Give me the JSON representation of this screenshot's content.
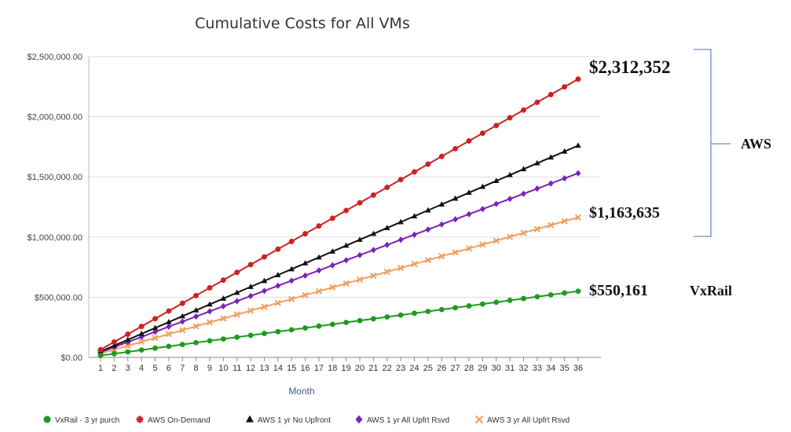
{
  "chart_data": {
    "type": "line",
    "title": "Cumulative Costs for All VMs",
    "xlabel": "Month",
    "ylabel": "",
    "ylim": [
      0,
      2500000
    ],
    "y_ticks": [
      "$0.00",
      "$500,000.00",
      "$1,000,000.00",
      "$1,500,000.00",
      "$2,000,000.00",
      "$2,500,000.00"
    ],
    "x_start": 1,
    "x_end": 36,
    "grid": "horizontal",
    "legend_position": "bottom",
    "series": [
      {
        "name": "VxRail - 3 yr purch",
        "start": 15282,
        "end": 550161,
        "color": "#1f9a1f",
        "marker": "circle"
      },
      {
        "name": "AWS On-Demand",
        "start": 64232,
        "end": 2312352,
        "color": "#cc2222",
        "marker": "cross"
      },
      {
        "name": "AWS 1 yr No Upfront",
        "start": 48889,
        "end": 1760000,
        "color": "#111111",
        "marker": "triangle"
      },
      {
        "name": "AWS 1 yr All Upfrt Rsvd",
        "start": 42500,
        "end": 1530000,
        "color": "#7a22b4",
        "marker": "diamond"
      },
      {
        "name": "AWS 3 yr All Upfrt Rsvd",
        "start": 32323,
        "end": 1163635,
        "color": "#f0a060",
        "marker": "x"
      }
    ],
    "annotations": {
      "aws_on_demand_total": "$2,312,352",
      "aws_3yr_total": "$1,163,635",
      "vxrail_total": "$550,161",
      "vxrail_label": "VxRail",
      "aws_bracket_label": "AWS"
    }
  }
}
